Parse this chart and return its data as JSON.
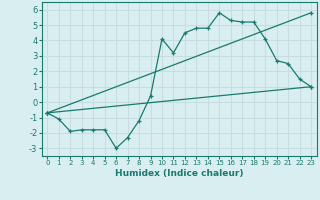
{
  "line1_x": [
    0,
    1,
    2,
    3,
    4,
    5,
    6,
    7,
    8,
    9,
    10,
    11,
    12,
    13,
    14,
    15,
    16,
    17,
    18,
    19,
    20,
    21,
    22,
    23
  ],
  "line1_y": [
    -0.7,
    -1.1,
    -1.9,
    -1.8,
    -1.8,
    -1.8,
    -3.0,
    -2.3,
    -1.2,
    0.4,
    4.1,
    3.2,
    4.5,
    4.8,
    4.8,
    5.8,
    5.3,
    5.2,
    5.2,
    4.1,
    2.7,
    2.5,
    1.5,
    1.0
  ],
  "line2_x": [
    0,
    23
  ],
  "line2_y": [
    -0.7,
    5.8
  ],
  "line3_x": [
    0,
    23
  ],
  "line3_y": [
    -0.7,
    1.0
  ],
  "line_color": "#1a7a6e",
  "bg_color": "#d8eef0",
  "grid_color": "#c8dde0",
  "xlabel": "Humidex (Indice chaleur)",
  "xlim": [
    -0.5,
    23.5
  ],
  "ylim": [
    -3.5,
    6.5
  ],
  "xticks": [
    0,
    1,
    2,
    3,
    4,
    5,
    6,
    7,
    8,
    9,
    10,
    11,
    12,
    13,
    14,
    15,
    16,
    17,
    18,
    19,
    20,
    21,
    22,
    23
  ],
  "yticks": [
    -3,
    -2,
    -1,
    0,
    1,
    2,
    3,
    4,
    5,
    6
  ]
}
